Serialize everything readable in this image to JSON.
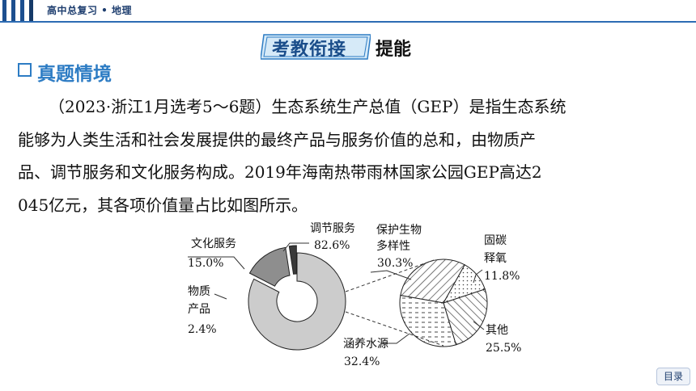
{
  "header": {
    "title": "高中总复习 • 地理"
  },
  "banner": {
    "tag": "考教衔接",
    "suffix": "提能"
  },
  "section": {
    "label": "真题情境"
  },
  "paragraph": {
    "lines": [
      "（2023·浙江1月选考5～6题）生态系统生产总值（GEP）是指生态系统",
      "能够为人类生活和社会发展提供的最终产品与服务价值的总和，由物质产",
      "品、调节服务和文化服务构成。2019年海南热带雨林国家公园GEP高达2",
      "045亿元，其各项价值量占比如图所示。"
    ]
  },
  "chart_data": [
    {
      "type": "pie",
      "style": "donut",
      "slices": [
        {
          "name": "调节服务",
          "value": 82.6,
          "label": "82.6%",
          "fill": "#cccccc"
        },
        {
          "name": "文化服务",
          "value": 15.0,
          "label": "15.0%",
          "fill": "#8e8e8e"
        },
        {
          "name": "物质产品",
          "value": 2.4,
          "label": "2.4%",
          "fill": "#3a3a3a"
        }
      ],
      "labels": {
        "regulating_name": "调节服务",
        "regulating_pct": "82.6%",
        "cultural_name": "文化服务",
        "cultural_pct": "15.0%",
        "material_name_1": "物质",
        "material_name_2": "产品",
        "material_pct": "2.4%"
      }
    },
    {
      "type": "pie",
      "breakdown_of": "调节服务",
      "slices": [
        {
          "name": "保护生物多样性",
          "value": 30.3,
          "label": "30.3%",
          "pattern": "diagonal"
        },
        {
          "name": "固碳释氧",
          "value": 11.8,
          "label": "11.8%",
          "pattern": "dots"
        },
        {
          "name": "其他",
          "value": 25.5,
          "label": "25.5%",
          "pattern": "crosshatch"
        },
        {
          "name": "涵养水源",
          "value": 32.4,
          "label": "32.4%",
          "pattern": "dashes"
        }
      ],
      "labels": {
        "bio_name_1": "保护生物",
        "bio_name_2": "多样性",
        "bio_pct": "30.3%",
        "carbon_name_1": "固碳",
        "carbon_name_2": "释氧",
        "carbon_pct": "11.8%",
        "other_name": "其他",
        "other_pct": "25.5%",
        "water_name": "涵养水源",
        "water_pct": "32.4%"
      }
    }
  ],
  "nav": {
    "toc_label": "目录"
  }
}
